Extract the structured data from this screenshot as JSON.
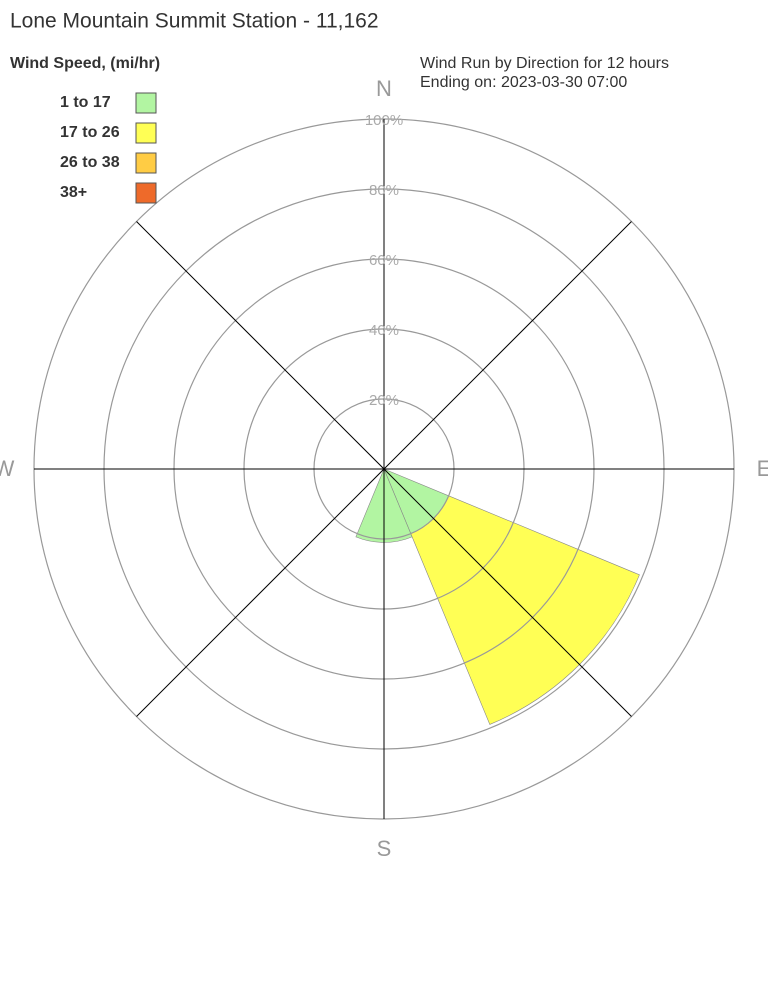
{
  "chart_data": {
    "type": "windrose",
    "title": "Lone Mountain Summit Station - 11,162",
    "legend_title": "Wind Speed, (mi/hr)",
    "subtitle": [
      "Wind Run by Direction for 12 hours",
      "Ending on: 2023-03-30 07:00"
    ],
    "categories": [
      "N",
      null,
      "E",
      null,
      "S",
      null,
      "W",
      null
    ],
    "series": [
      {
        "name": "1 to 17",
        "color": "#b2f5a2",
        "values": [
          0,
          0,
          0,
          20,
          21,
          0,
          0,
          0
        ]
      },
      {
        "name": "17 to 26",
        "color": "#ffff55",
        "values": [
          0,
          0,
          0,
          59,
          0,
          0,
          0,
          0
        ]
      },
      {
        "name": "26 to 38",
        "color": "#ffcc44",
        "values": [
          0,
          0,
          0,
          0,
          0,
          0,
          0,
          0
        ]
      },
      {
        "name": "38+",
        "color": "#ee6a2a",
        "values": [
          0,
          0,
          0,
          0,
          0,
          0,
          0,
          0
        ]
      }
    ],
    "rlim": [
      0,
      100
    ],
    "rticks": [
      {
        "value": 20,
        "label": "20%"
      },
      {
        "value": 40,
        "label": "40%"
      },
      {
        "value": 60,
        "label": "60%"
      },
      {
        "value": 80,
        "label": "80%"
      },
      {
        "value": 100,
        "label": "100%"
      }
    ]
  }
}
